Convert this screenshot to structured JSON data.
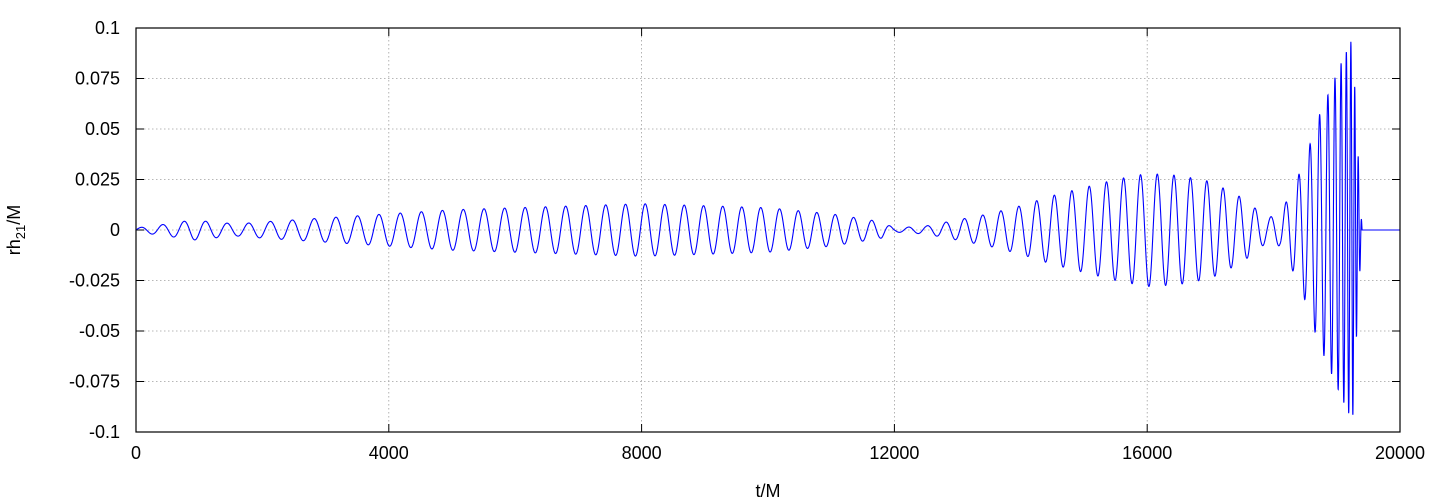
{
  "chart_data": {
    "type": "line",
    "title": "",
    "xlabel": "t/M",
    "ylabel": {
      "main": "rh",
      "sub": "21",
      "tail": "/M"
    },
    "xlim": [
      0,
      20000
    ],
    "ylim": [
      -0.1,
      0.1
    ],
    "x_ticks": [
      0,
      4000,
      8000,
      12000,
      16000,
      20000
    ],
    "x_tick_labels": [
      "0",
      "4000",
      "8000",
      "12000",
      "16000",
      "20000"
    ],
    "y_ticks": [
      0.1,
      0.075,
      0.05,
      0.025,
      0,
      -0.025,
      -0.05,
      -0.075,
      -0.1
    ],
    "y_tick_labels": [
      "0.1",
      "0.075",
      "0.05",
      "0.025",
      "0",
      "-0.025",
      "-0.05",
      "-0.075",
      "-0.1"
    ],
    "grid": true,
    "legend": "none",
    "series": [
      {
        "color": "#0000ff",
        "description_points": {
          "x": [
            0,
            500,
            900,
            1200,
            1600,
            2000,
            2500,
            3000,
            3500,
            4000,
            5000,
            6000,
            7000,
            8000,
            9000,
            10000,
            11000,
            11800,
            12000,
            12500,
            13000,
            13500,
            14000,
            14500,
            15000,
            15500,
            16000,
            16500,
            17000,
            17500,
            17900,
            18100,
            18300,
            18500,
            18700,
            18900,
            19100,
            19250,
            19300,
            19400,
            20000
          ],
          "amplitude": [
            0.001,
            0.003,
            0.005,
            0.004,
            0.003,
            0.004,
            0.005,
            0.006,
            0.007,
            0.008,
            0.01,
            0.011,
            0.012,
            0.013,
            0.012,
            0.011,
            0.008,
            0.004,
            0.001,
            0.002,
            0.005,
            0.008,
            0.012,
            0.017,
            0.021,
            0.025,
            0.028,
            0.027,
            0.024,
            0.016,
            0.006,
            0.008,
            0.02,
            0.035,
            0.055,
            0.07,
            0.085,
            0.095,
            0.06,
            0.0,
            0.0
          ]
        }
      }
    ]
  }
}
